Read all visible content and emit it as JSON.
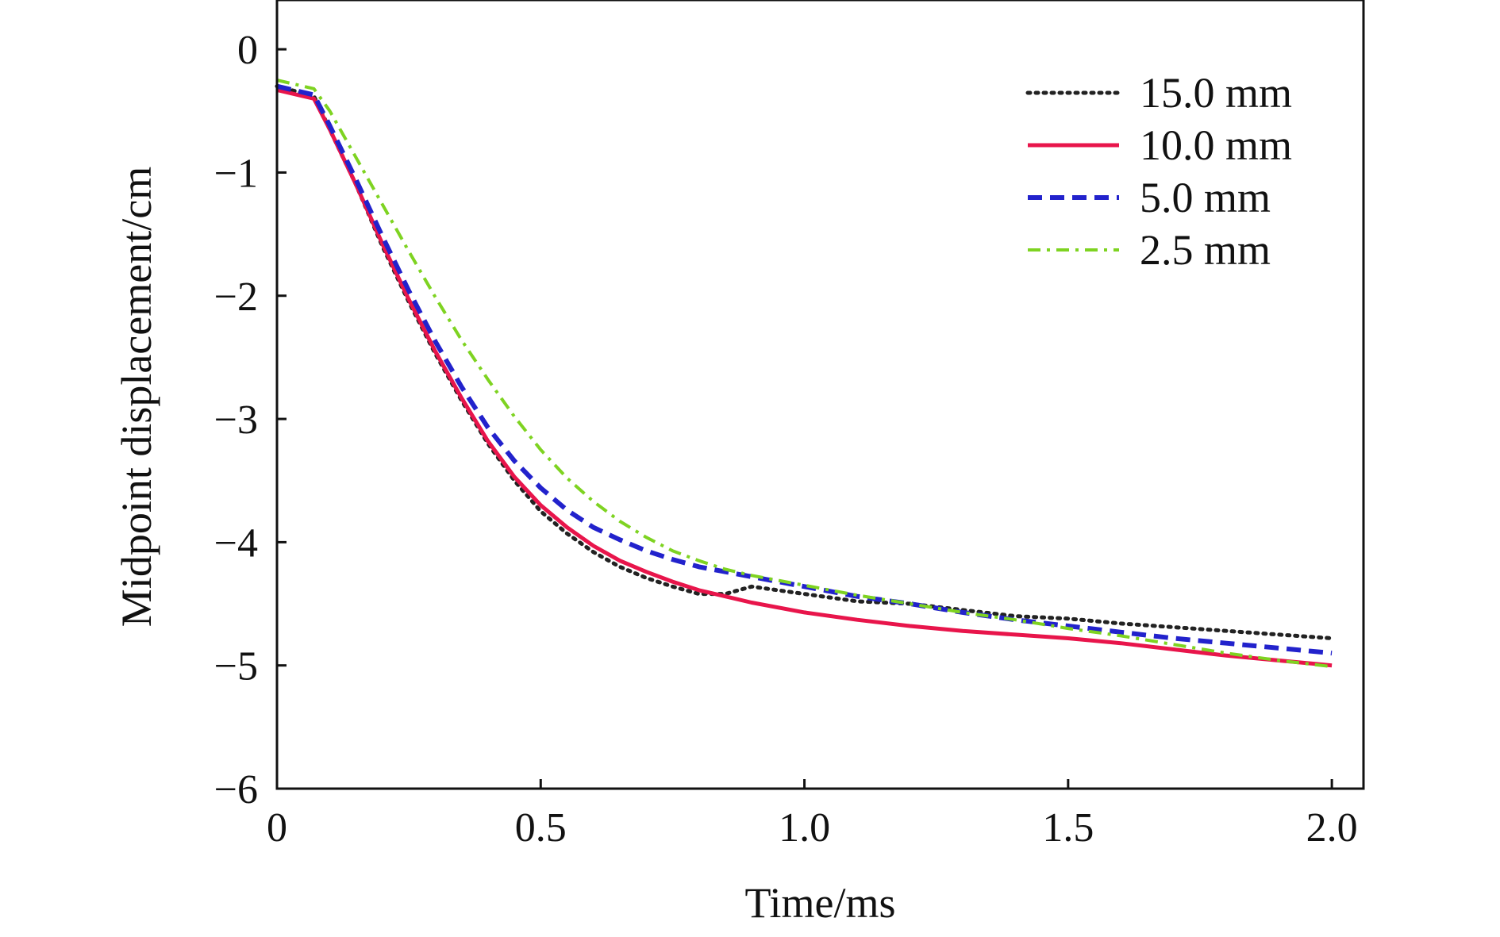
{
  "chart_data": {
    "type": "line",
    "title": "",
    "xlabel": "Time/ms",
    "ylabel": "Midpoint displacement/cm",
    "xlim": [
      0,
      2.06
    ],
    "ylim": [
      -6,
      0.4
    ],
    "x_ticks": [
      {
        "value": 0,
        "label": "0"
      },
      {
        "value": 0.5,
        "label": "0.5"
      },
      {
        "value": 1.0,
        "label": "1.0"
      },
      {
        "value": 1.5,
        "label": "1.5"
      },
      {
        "value": 2.0,
        "label": "2.0"
      }
    ],
    "y_ticks": [
      {
        "value": 0,
        "label": "0"
      },
      {
        "value": -1,
        "label": "−1"
      },
      {
        "value": -2,
        "label": "−2"
      },
      {
        "value": -3,
        "label": "−3"
      },
      {
        "value": -4,
        "label": "−4"
      },
      {
        "value": -5,
        "label": "−5"
      },
      {
        "value": -6,
        "label": "−6"
      }
    ],
    "grid": false,
    "legend_position": "top-right",
    "series": [
      {
        "name": "15.0 mm",
        "color": "#222222",
        "style": "dotted",
        "x": [
          0,
          0.07,
          0.1,
          0.15,
          0.2,
          0.25,
          0.3,
          0.35,
          0.4,
          0.45,
          0.5,
          0.55,
          0.6,
          0.65,
          0.7,
          0.75,
          0.8,
          0.85,
          0.9,
          1.0,
          1.1,
          1.2,
          1.3,
          1.4,
          1.5,
          1.6,
          1.7,
          1.8,
          1.9,
          2.0
        ],
        "y": [
          -0.3,
          -0.38,
          -0.65,
          -1.1,
          -1.6,
          -2.05,
          -2.47,
          -2.85,
          -3.2,
          -3.5,
          -3.75,
          -3.93,
          -4.08,
          -4.2,
          -4.29,
          -4.36,
          -4.42,
          -4.42,
          -4.36,
          -4.42,
          -4.48,
          -4.5,
          -4.55,
          -4.6,
          -4.62,
          -4.66,
          -4.69,
          -4.72,
          -4.75,
          -4.78
        ]
      },
      {
        "name": "10.0 mm",
        "color": "#e8154b",
        "style": "solid",
        "x": [
          0,
          0.07,
          0.1,
          0.15,
          0.2,
          0.25,
          0.3,
          0.35,
          0.4,
          0.45,
          0.5,
          0.55,
          0.6,
          0.65,
          0.7,
          0.75,
          0.8,
          0.85,
          0.9,
          1.0,
          1.1,
          1.2,
          1.3,
          1.4,
          1.5,
          1.6,
          1.7,
          1.8,
          1.9,
          2.0
        ],
        "y": [
          -0.33,
          -0.4,
          -0.65,
          -1.1,
          -1.58,
          -2.03,
          -2.45,
          -2.83,
          -3.18,
          -3.47,
          -3.7,
          -3.88,
          -4.03,
          -4.15,
          -4.24,
          -4.32,
          -4.39,
          -4.44,
          -4.49,
          -4.57,
          -4.63,
          -4.68,
          -4.72,
          -4.75,
          -4.78,
          -4.82,
          -4.87,
          -4.92,
          -4.96,
          -5.0
        ]
      },
      {
        "name": "5.0 mm",
        "color": "#2222cc",
        "style": "dashed",
        "x": [
          0,
          0.07,
          0.1,
          0.15,
          0.2,
          0.25,
          0.3,
          0.35,
          0.4,
          0.45,
          0.5,
          0.55,
          0.6,
          0.65,
          0.7,
          0.75,
          0.8,
          0.85,
          0.9,
          1.0,
          1.1,
          1.2,
          1.3,
          1.4,
          1.5,
          1.6,
          1.7,
          1.8,
          1.9,
          2.0
        ],
        "y": [
          -0.3,
          -0.37,
          -0.62,
          -1.06,
          -1.52,
          -1.96,
          -2.37,
          -2.74,
          -3.07,
          -3.34,
          -3.56,
          -3.74,
          -3.88,
          -3.98,
          -4.07,
          -4.14,
          -4.2,
          -4.24,
          -4.28,
          -4.36,
          -4.44,
          -4.5,
          -4.57,
          -4.63,
          -4.68,
          -4.73,
          -4.78,
          -4.82,
          -4.86,
          -4.9
        ]
      },
      {
        "name": "2.5 mm",
        "color": "#7ed321",
        "style": "dashdot",
        "x": [
          0,
          0.07,
          0.1,
          0.15,
          0.2,
          0.25,
          0.3,
          0.35,
          0.4,
          0.45,
          0.5,
          0.55,
          0.6,
          0.65,
          0.7,
          0.75,
          0.8,
          0.85,
          0.9,
          1.0,
          1.1,
          1.2,
          1.3,
          1.4,
          1.5,
          1.6,
          1.7,
          1.8,
          1.9,
          2.0
        ],
        "y": [
          -0.25,
          -0.32,
          -0.5,
          -0.88,
          -1.26,
          -1.64,
          -2.01,
          -2.36,
          -2.68,
          -2.98,
          -3.25,
          -3.48,
          -3.67,
          -3.83,
          -3.96,
          -4.07,
          -4.15,
          -4.22,
          -4.27,
          -4.35,
          -4.43,
          -4.5,
          -4.57,
          -4.63,
          -4.7,
          -4.76,
          -4.83,
          -4.9,
          -4.96,
          -5.01
        ]
      }
    ]
  }
}
